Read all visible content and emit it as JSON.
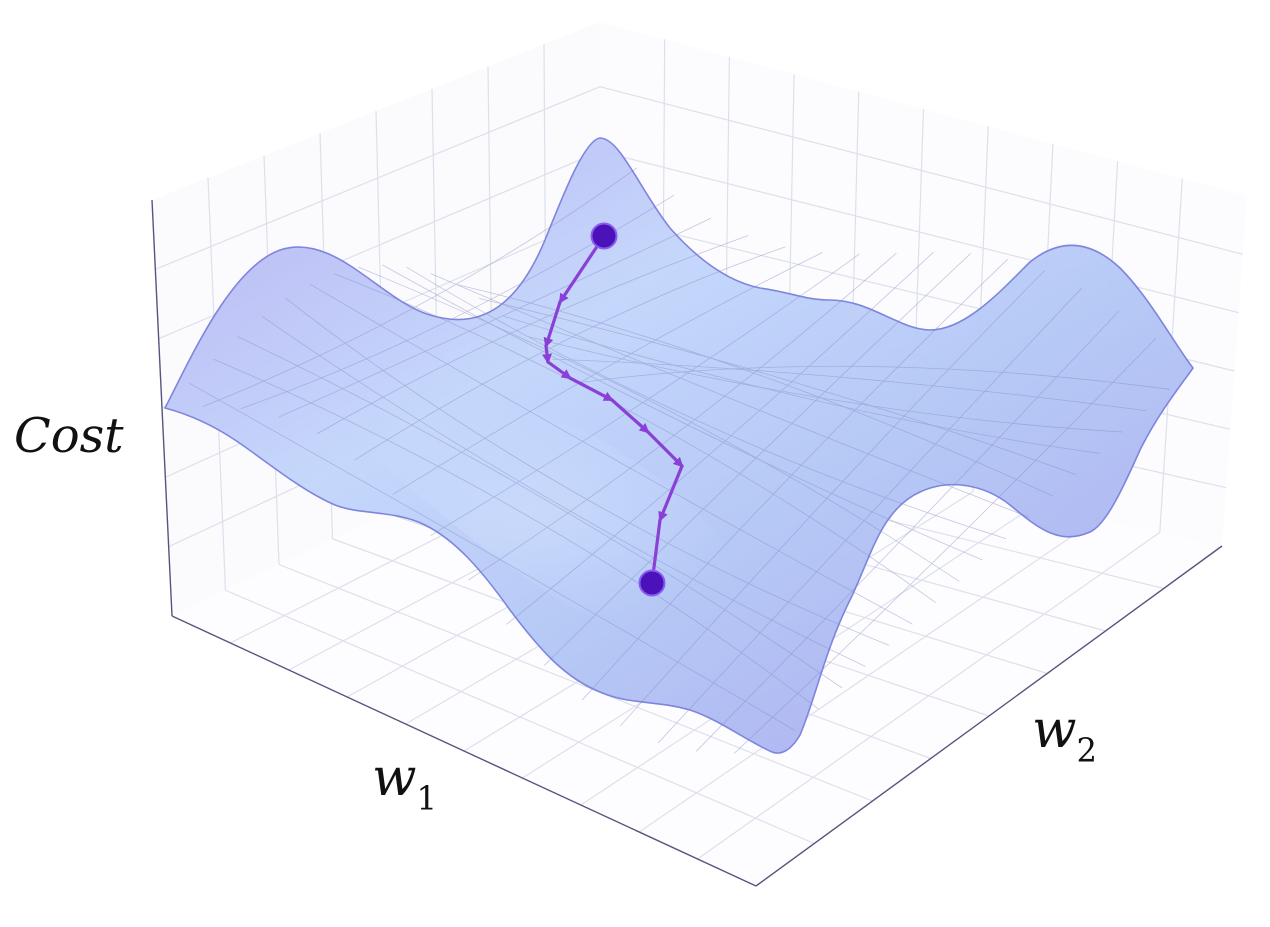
{
  "axes": {
    "z_label": "Cost",
    "x_label_base": "w",
    "x_label_sub": "1",
    "y_label_base": "w",
    "y_label_sub": "2"
  },
  "colors": {
    "surface_light": "#c9d9fb",
    "surface_mid": "#b2c4f5",
    "surface_dark": "#a8a6ee",
    "surface_edge": "#7f86dc",
    "mesh": "#8a93c4",
    "grid": "#dcdfea",
    "axis_line": "#5a5a82",
    "path": "#8a3fd6",
    "point": "#4a12b8",
    "point_stroke": "#8a5cf0"
  },
  "descent_path": {
    "start_point": "start",
    "end_point": "minimum",
    "steps": 8
  }
}
